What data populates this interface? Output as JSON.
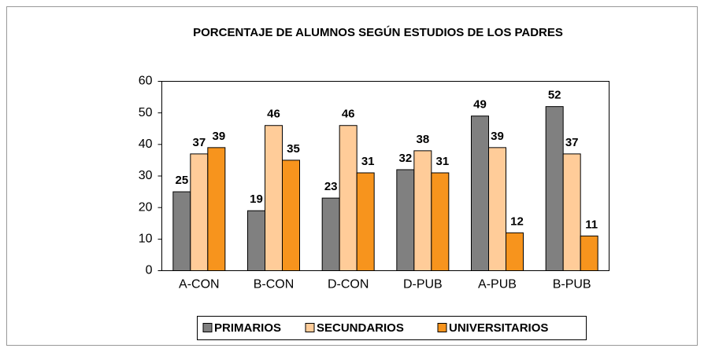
{
  "chart_data": {
    "type": "bar",
    "title": "PORCENTAJE DE ALUMNOS SEGÚN ESTUDIOS DE LOS PADRES",
    "categories": [
      "A-CON",
      "B-CON",
      "D-CON",
      "D-PUB",
      "A-PUB",
      "B-PUB"
    ],
    "series": [
      {
        "name": "PRIMARIOS",
        "color": "#808080",
        "values": [
          25,
          19,
          23,
          32,
          49,
          52
        ]
      },
      {
        "name": "SECUNDARIOS",
        "color": "#ffcc99",
        "values": [
          37,
          46,
          46,
          38,
          39,
          37
        ]
      },
      {
        "name": "UNIVERSITARIOS",
        "color": "#f7941d",
        "values": [
          39,
          35,
          31,
          31,
          12,
          11
        ]
      }
    ],
    "ylim": [
      0,
      60
    ],
    "yticks": [
      0,
      10,
      20,
      30,
      40,
      50,
      60
    ],
    "grid": false,
    "legend": "bottom"
  }
}
